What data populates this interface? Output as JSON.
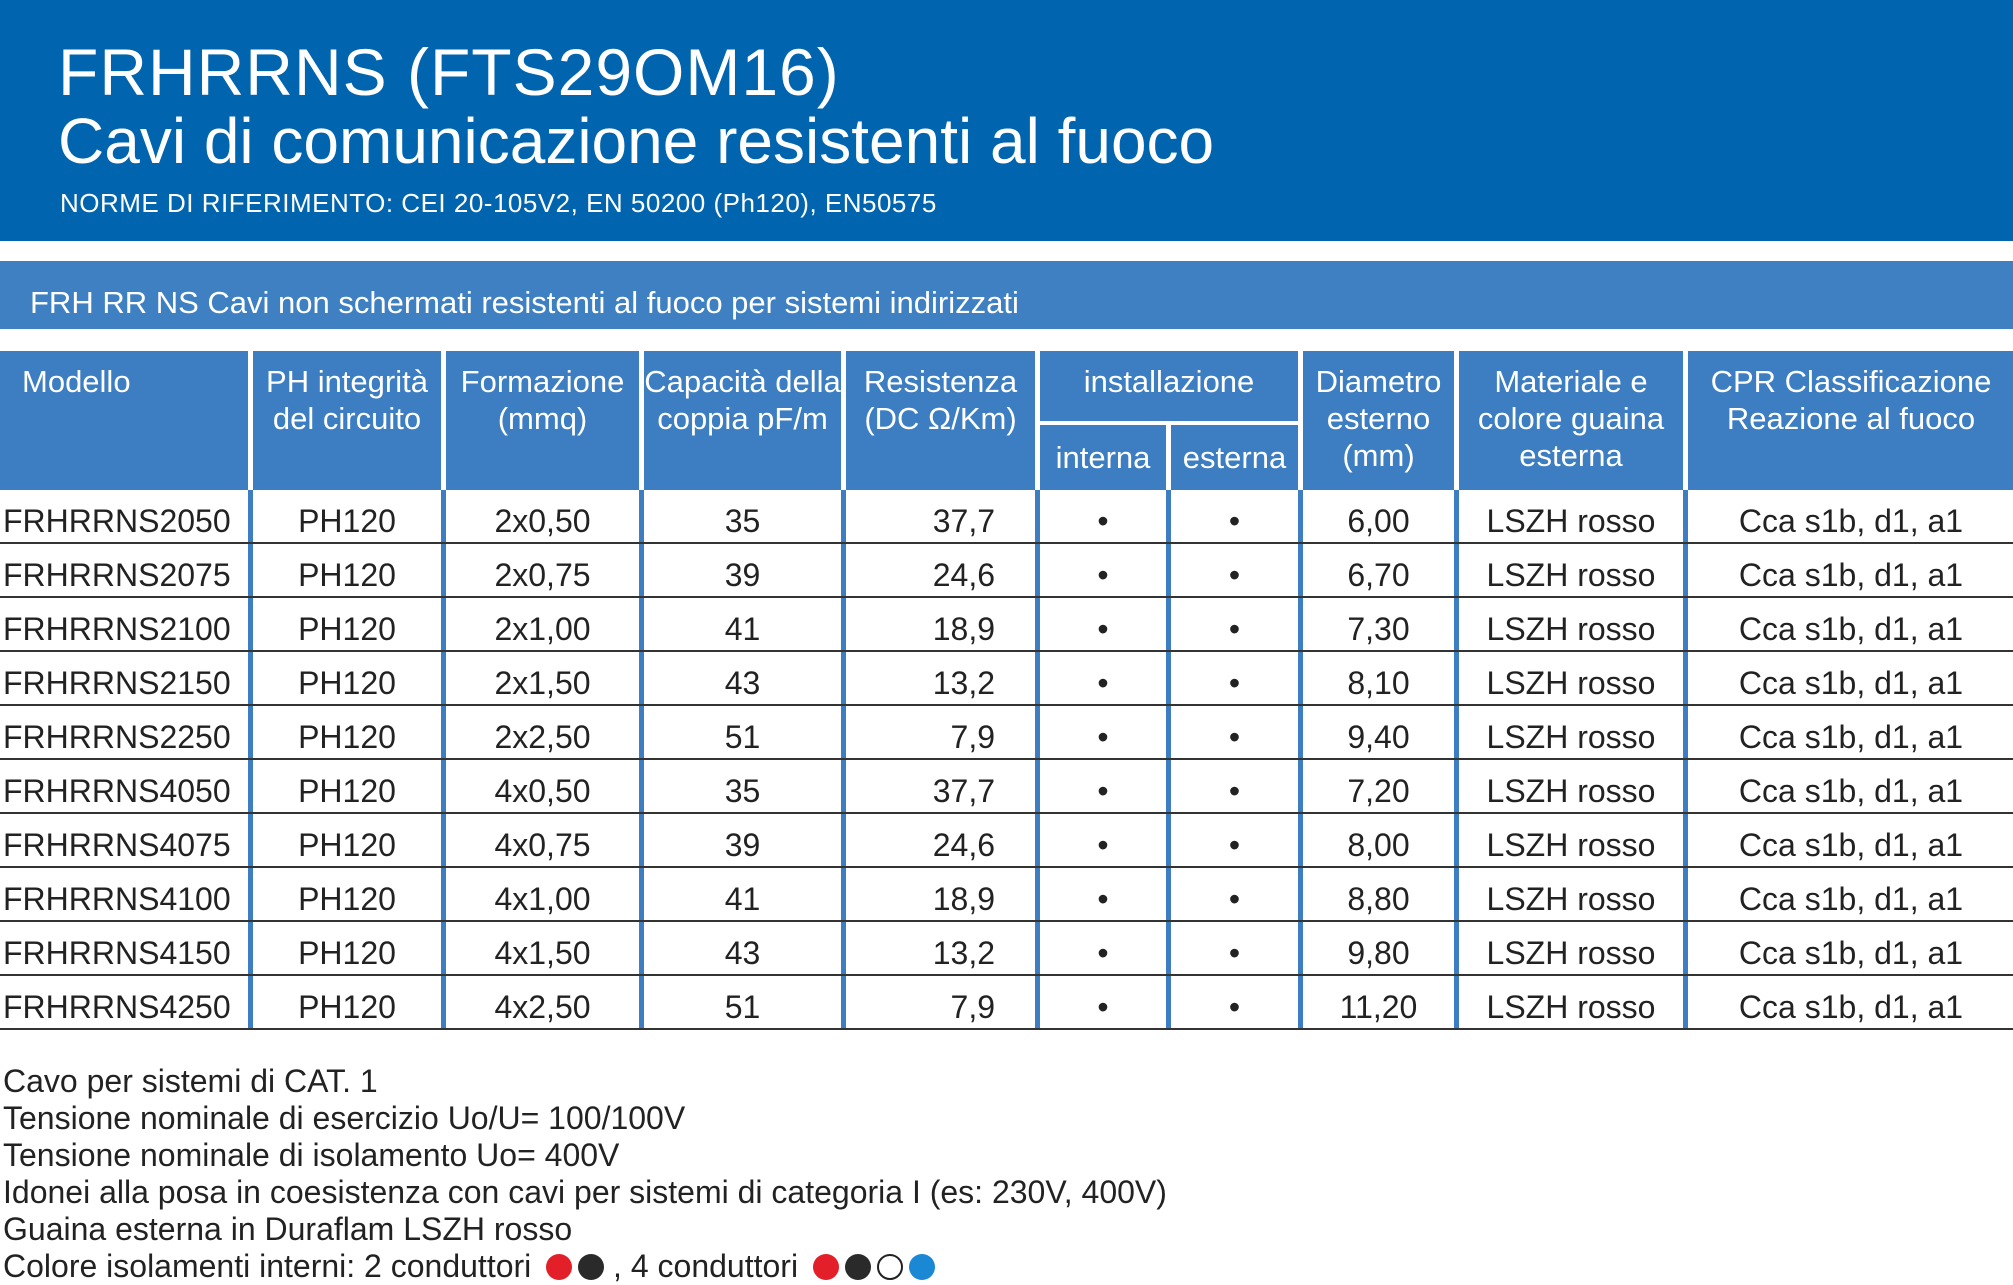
{
  "header": {
    "title": "FRHRRNS (FTS29OM16)",
    "subtitle": "Cavi di comunicazione resistenti al fuoco",
    "norms": "NORME DI RIFERIMENTO: CEI 20-105V2, EN 50200 (Ph120), EN50575"
  },
  "section_title": "FRH RR NS Cavi non schermati resistenti al fuoco per sistemi indirizzati",
  "colors": {
    "header_blue": "#0064ae",
    "table_blue": "#3d7ec2"
  },
  "table": {
    "headers": {
      "modello": "Modello",
      "ph": "PH integrità del circuito",
      "formazione": "Formazione (mmq)",
      "capacita": "Capacità della coppia pF/m",
      "resistenza": "Resistenza (DC Ω/Km)",
      "installazione": "installazione",
      "interna": "interna",
      "esterna": "esterna",
      "diametro": "Diametro esterno (mm)",
      "materiale": "Materiale e colore guaina esterna",
      "cpr": "CPR Classificazione Reazione al fuoco"
    },
    "rows": [
      [
        "FRHRRNS2050",
        "PH120",
        "2x0,50",
        "35",
        "37,7",
        "•",
        "•",
        "6,00",
        "LSZH rosso",
        "Cca s1b, d1, a1"
      ],
      [
        "FRHRRNS2075",
        "PH120",
        "2x0,75",
        "39",
        "24,6",
        "•",
        "•",
        "6,70",
        "LSZH rosso",
        "Cca s1b, d1, a1"
      ],
      [
        "FRHRRNS2100",
        "PH120",
        "2x1,00",
        "41",
        "18,9",
        "•",
        "•",
        "7,30",
        "LSZH rosso",
        "Cca s1b, d1, a1"
      ],
      [
        "FRHRRNS2150",
        "PH120",
        "2x1,50",
        "43",
        "13,2",
        "•",
        "•",
        "8,10",
        "LSZH rosso",
        "Cca s1b, d1, a1"
      ],
      [
        "FRHRRNS2250",
        "PH120",
        "2x2,50",
        "51",
        "7,9",
        "•",
        "•",
        "9,40",
        "LSZH rosso",
        "Cca s1b, d1, a1"
      ],
      [
        "FRHRRNS4050",
        "PH120",
        "4x0,50",
        "35",
        "37,7",
        "•",
        "•",
        "7,20",
        "LSZH rosso",
        "Cca s1b, d1, a1"
      ],
      [
        "FRHRRNS4075",
        "PH120",
        "4x0,75",
        "39",
        "24,6",
        "•",
        "•",
        "8,00",
        "LSZH rosso",
        "Cca s1b, d1, a1"
      ],
      [
        "FRHRRNS4100",
        "PH120",
        "4x1,00",
        "41",
        "18,9",
        "•",
        "•",
        "8,80",
        "LSZH rosso",
        "Cca s1b, d1, a1"
      ],
      [
        "FRHRRNS4150",
        "PH120",
        "4x1,50",
        "43",
        "13,2",
        "•",
        "•",
        "9,80",
        "LSZH rosso",
        "Cca s1b, d1, a1"
      ],
      [
        "FRHRRNS4250",
        "PH120",
        "4x2,50",
        "51",
        "7,9",
        "•",
        "•",
        "11,20",
        "LSZH rosso",
        "Cca s1b, d1, a1"
      ]
    ]
  },
  "notes": [
    "Cavo per sistemi di CAT. 1",
    "Tensione nominale di esercizio Uo/U= 100/100V",
    "Tensione nominale di isolamento Uo= 400V",
    "Idonei alla posa in coesistenza con cavi per sistemi di categoria I (es: 230V, 400V)",
    "Guaina esterna in Duraflam LSZH rosso"
  ],
  "colors_note": {
    "label": "Colore isolamenti interni: 2 conduttori",
    "two_conductor_colors": [
      "#e3202a",
      "#2a2a2a"
    ],
    "separator": ", 4 conduttori",
    "four_conductor_colors": [
      "#e3202a",
      "#2a2a2a",
      "#ffffff",
      "#1a88d4"
    ]
  }
}
